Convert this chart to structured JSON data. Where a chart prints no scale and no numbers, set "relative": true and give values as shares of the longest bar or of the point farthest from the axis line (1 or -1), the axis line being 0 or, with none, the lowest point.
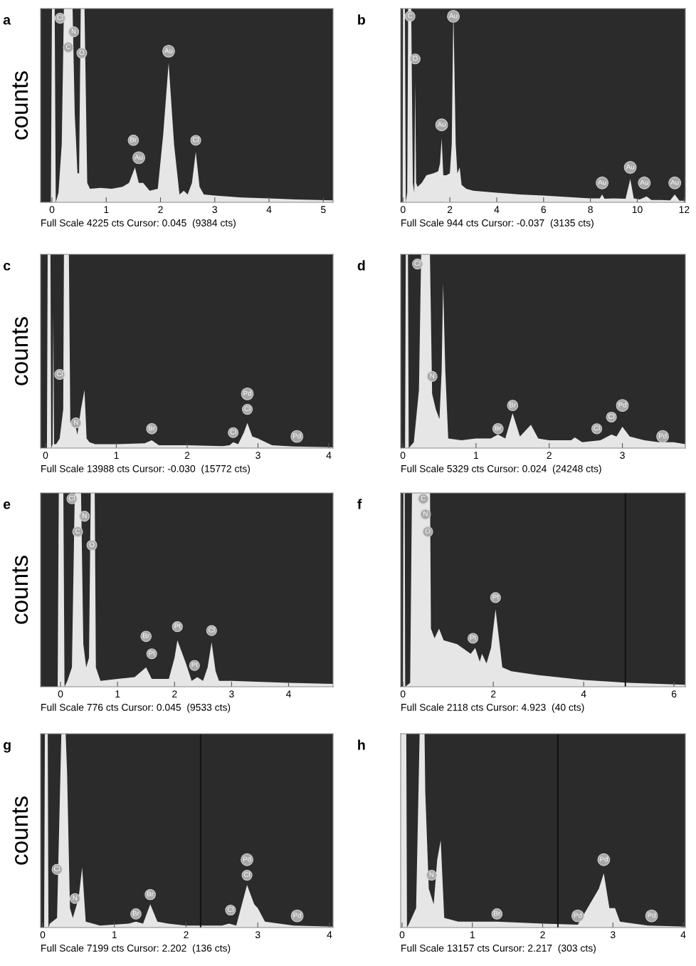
{
  "chart_data": [
    {
      "type": "area",
      "title": "a",
      "ylabel": "counts",
      "relative": true,
      "tick_labels": "x",
      "grid": false,
      "color": "#e6e6e6",
      "xlim": [
        -0.21,
        5.18
      ],
      "xticks": [
        0,
        1,
        2,
        3,
        4,
        5
      ],
      "x": [
        -0.21,
        -0.02,
        0,
        0.05,
        0.07,
        0.12,
        0.18,
        0.22,
        0.26,
        0.38,
        0.42,
        0.44,
        0.47,
        0.5,
        0.53,
        0.6,
        0.65,
        0.7,
        0.9,
        1.1,
        1.3,
        1.42,
        1.53,
        1.6,
        1.68,
        1.8,
        1.95,
        2.05,
        2.15,
        2.25,
        2.35,
        2.43,
        2.5,
        2.58,
        2.65,
        2.72,
        2.8,
        3.0,
        3.5,
        4.0,
        4.5,
        5.18
      ],
      "values": [
        0,
        0,
        1,
        1,
        0,
        0.05,
        0.3,
        1,
        1,
        1,
        0.45,
        0.34,
        0.15,
        0.15,
        1,
        1,
        0.1,
        0.07,
        0.074,
        0.07,
        0.08,
        0.1,
        0.18,
        0.1,
        0.1,
        0.06,
        0.07,
        0.35,
        0.72,
        0.3,
        0.04,
        0.06,
        0.04,
        0.1,
        0.26,
        0.08,
        0.04,
        0.035,
        0.025,
        0.02,
        0.015,
        0.01
      ],
      "annotations": [
        {
          "text": "Cl",
          "x": 0.15,
          "y": 0.95
        },
        {
          "text": "N",
          "x": 0.4,
          "y": 0.88
        },
        {
          "text": "C",
          "x": 0.3,
          "y": 0.8
        },
        {
          "text": "O",
          "x": 0.55,
          "y": 0.77
        },
        {
          "text": "Au",
          "x": 2.15,
          "y": 0.78
        },
        {
          "text": "Br",
          "x": 1.5,
          "y": 0.32
        },
        {
          "text": "Au",
          "x": 1.6,
          "y": 0.23
        },
        {
          "text": "Cl",
          "x": 2.65,
          "y": 0.32
        },
        "Full Scale 4225 cts Cursor: 0.045  (9384 cts)"
      ]
    },
    {
      "type": "area",
      "title": "b",
      "relative": true,
      "tick_labels": "x",
      "grid": false,
      "color": "#e6e6e6",
      "xlim": [
        -0.1,
        12.05
      ],
      "xticks": [
        0,
        2,
        4,
        6,
        8,
        10,
        12
      ],
      "x": [
        -0.1,
        -0.02,
        0,
        0.08,
        0.12,
        0.18,
        0.22,
        0.35,
        0.42,
        0.48,
        0.52,
        0.56,
        0.62,
        0.8,
        1.0,
        1.3,
        1.5,
        1.58,
        1.65,
        1.72,
        1.85,
        2.0,
        2.08,
        2.15,
        2.25,
        2.32,
        2.42,
        2.5,
        2.7,
        3.0,
        4.0,
        5.0,
        6.0,
        7.0,
        8.0,
        8.4,
        8.5,
        8.6,
        9.0,
        9.5,
        9.7,
        9.85,
        10.1,
        10.4,
        10.6,
        11.0,
        11.4,
        11.6,
        11.8,
        12.05
      ],
      "values": [
        0,
        0,
        1,
        1,
        0,
        0.05,
        1,
        1,
        0.1,
        0.05,
        0.62,
        0.1,
        0.08,
        0.1,
        0.14,
        0.15,
        0.16,
        0.2,
        0.33,
        0.14,
        0.14,
        0.15,
        0.3,
        1,
        0.3,
        0.15,
        0.18,
        0.09,
        0.07,
        0.06,
        0.05,
        0.04,
        0.035,
        0.028,
        0.02,
        0.02,
        0.04,
        0.018,
        0.02,
        0.018,
        0.12,
        0.02,
        0.015,
        0.03,
        0.012,
        0.012,
        0.01,
        0.04,
        0.008,
        0.008
      ],
      "annotations": [
        {
          "text": "C",
          "x": 0.3,
          "y": 0.96
        },
        {
          "text": "O",
          "x": 0.52,
          "y": 0.74
        },
        {
          "text": "Au",
          "x": 2.15,
          "y": 0.96
        },
        {
          "text": "Au",
          "x": 1.65,
          "y": 0.4
        },
        {
          "text": "Au",
          "x": 8.5,
          "y": 0.1
        },
        {
          "text": "Au",
          "x": 9.7,
          "y": 0.18
        },
        {
          "text": "Au",
          "x": 10.3,
          "y": 0.1
        },
        {
          "text": "Au",
          "x": 11.6,
          "y": 0.1
        },
        "Full Scale 944 cts Cursor: -0.037  (3135 cts)"
      ]
    },
    {
      "type": "area",
      "title": "c",
      "ylabel": "counts",
      "relative": true,
      "tick_labels": "x",
      "grid": false,
      "color": "#e6e6e6",
      "xlim": [
        -0.07,
        4.06
      ],
      "xticks": [
        0,
        1,
        2,
        3,
        4
      ],
      "x": [
        -0.07,
        0.02,
        0.03,
        0.07,
        0.08,
        0.1,
        0.11,
        0.12,
        0.15,
        0.2,
        0.25,
        0.26,
        0.33,
        0.35,
        0.4,
        0.45,
        0.5,
        0.55,
        0.58,
        0.62,
        0.7,
        1.0,
        1.4,
        1.5,
        1.6,
        2.0,
        2.5,
        2.6,
        2.65,
        2.72,
        2.8,
        2.85,
        2.92,
        3.0,
        3.05,
        3.2,
        3.5,
        4.06
      ],
      "values": [
        0,
        0,
        1,
        1,
        0,
        0.02,
        0.7,
        0.02,
        0.02,
        0.05,
        0.2,
        1,
        1,
        0.13,
        0.15,
        0.07,
        0.2,
        0.3,
        0.05,
        0.03,
        0.02,
        0.02,
        0.025,
        0.04,
        0.015,
        0.015,
        0.01,
        0.015,
        0.03,
        0.02,
        0.08,
        0.13,
        0.06,
        0.05,
        0.04,
        0.015,
        0.008,
        0.005
      ],
      "annotations": [
        {
          "text": "Cl",
          "x": 0.2,
          "y": 0.38
        },
        {
          "text": "N",
          "x": 0.43,
          "y": 0.13
        },
        {
          "text": "Br",
          "x": 1.5,
          "y": 0.1
        },
        {
          "text": "Cl",
          "x": 2.65,
          "y": 0.08
        },
        {
          "text": "Cl",
          "x": 2.85,
          "y": 0.2
        },
        {
          "text": "Pd",
          "x": 2.85,
          "y": 0.28
        },
        {
          "text": "Pd",
          "x": 3.55,
          "y": 0.06
        },
        "Full Scale 13988 cts Cursor: -0.030  (15772 cts)"
      ]
    },
    {
      "type": "area",
      "title": "d",
      "relative": true,
      "tick_labels": "x",
      "grid": false,
      "color": "#e6e6e6",
      "xlim": [
        -0.03,
        3.86
      ],
      "xticks": [
        0,
        1,
        2,
        3
      ],
      "x": [
        -0.03,
        0.03,
        0.04,
        0.07,
        0.08,
        0.15,
        0.22,
        0.25,
        0.37,
        0.4,
        0.45,
        0.5,
        0.53,
        0.55,
        0.58,
        0.62,
        0.8,
        1.0,
        1.2,
        1.3,
        1.4,
        1.5,
        1.6,
        1.75,
        1.85,
        2.0,
        2.3,
        2.35,
        2.45,
        2.7,
        2.85,
        2.92,
        3.0,
        3.1,
        3.3,
        3.5,
        3.7,
        3.86
      ],
      "values": [
        0,
        0,
        1,
        1,
        0,
        0.03,
        0.3,
        1,
        1,
        0.28,
        0.2,
        0.15,
        0.4,
        0.85,
        0.4,
        0.05,
        0.04,
        0.05,
        0.05,
        0.07,
        0.05,
        0.18,
        0.06,
        0.12,
        0.05,
        0.04,
        0.04,
        0.055,
        0.03,
        0.04,
        0.07,
        0.06,
        0.11,
        0.06,
        0.04,
        0.03,
        0.03,
        0.02
      ],
      "annotations": [
        {
          "text": "Cl",
          "x": 0.2,
          "y": 0.95
        },
        {
          "text": "N",
          "x": 0.4,
          "y": 0.37
        },
        {
          "text": "Br",
          "x": 1.3,
          "y": 0.1
        },
        {
          "text": "Br",
          "x": 1.5,
          "y": 0.22
        },
        {
          "text": "Cl",
          "x": 2.65,
          "y": 0.1
        },
        {
          "text": "Cl",
          "x": 2.85,
          "y": 0.16
        },
        {
          "text": "Pd",
          "x": 3.0,
          "y": 0.22
        },
        {
          "text": "Pd",
          "x": 3.55,
          "y": 0.06
        },
        "Full Scale 5329 cts Cursor: 0.024  (24248 cts)"
      ]
    },
    {
      "type": "area",
      "title": "e",
      "ylabel": "counts",
      "relative": true,
      "tick_labels": "x",
      "grid": false,
      "color": "#e6e6e6",
      "xlim": [
        -0.35,
        4.78
      ],
      "xticks": [
        0,
        1,
        2,
        3,
        4
      ],
      "x": [
        -0.35,
        -0.05,
        -0.03,
        0.05,
        0.07,
        0.12,
        0.2,
        0.25,
        0.36,
        0.4,
        0.45,
        0.5,
        0.53,
        0.6,
        0.62,
        0.7,
        1.0,
        1.3,
        1.5,
        1.6,
        1.9,
        2.0,
        2.05,
        2.2,
        2.3,
        2.4,
        2.5,
        2.58,
        2.65,
        2.72,
        2.78,
        3.0,
        4.0,
        4.78
      ],
      "values": [
        0,
        0,
        1,
        1,
        0,
        0.03,
        0.1,
        1,
        1,
        0.22,
        0.1,
        0.15,
        1,
        1,
        0.1,
        0.03,
        0.04,
        0.05,
        0.1,
        0.04,
        0.04,
        0.15,
        0.24,
        0.12,
        0.03,
        0.05,
        0.03,
        0.1,
        0.23,
        0.08,
        0.03,
        0.03,
        0.02,
        0.015
      ],
      "annotations": [
        {
          "text": "Cl",
          "x": 0.2,
          "y": 0.97
        },
        {
          "text": "N",
          "x": 0.42,
          "y": 0.88
        },
        {
          "text": "C",
          "x": 0.3,
          "y": 0.8
        },
        {
          "text": "O",
          "x": 0.55,
          "y": 0.73
        },
        {
          "text": "Br",
          "x": 1.5,
          "y": 0.26
        },
        {
          "text": "Pt",
          "x": 1.6,
          "y": 0.17
        },
        {
          "text": "Pt",
          "x": 2.05,
          "y": 0.31
        },
        {
          "text": "Pt",
          "x": 2.35,
          "y": 0.11
        },
        {
          "text": "Cl",
          "x": 2.65,
          "y": 0.29
        },
        "Full Scale 776 cts Cursor: 0.045  (9533 cts)"
      ]
    },
    {
      "type": "area",
      "title": "f",
      "relative": true,
      "tick_labels": "x",
      "grid": false,
      "color": "#e6e6e6",
      "xlim": [
        -0.05,
        6.25
      ],
      "xticks": [
        0,
        2,
        4,
        6
      ],
      "x": [
        -0.05,
        0,
        0.01,
        0.04,
        0.05,
        0.16,
        0.2,
        0.6,
        0.62,
        0.7,
        0.8,
        0.9,
        1.2,
        1.5,
        1.6,
        1.7,
        1.75,
        1.85,
        1.95,
        2.05,
        2.15,
        2.2,
        2.4,
        3.0,
        4.0,
        5.0,
        6.25
      ],
      "values": [
        0,
        0,
        1,
        1,
        0,
        0.02,
        1,
        1,
        0.3,
        0.25,
        0.3,
        0.24,
        0.22,
        0.17,
        0.2,
        0.13,
        0.17,
        0.12,
        0.2,
        0.4,
        0.2,
        0.1,
        0.08,
        0.06,
        0.035,
        0.02,
        0.01
      ],
      "ref_lines": [
        {
          "axis": "x",
          "value": 4.923,
          "color": "#111111"
        }
      ],
      "annotations": [
        {
          "text": "C",
          "x": 0.45,
          "y": 0.97
        },
        {
          "text": "N",
          "x": 0.5,
          "y": 0.89
        },
        {
          "text": "O",
          "x": 0.55,
          "y": 0.8
        },
        {
          "text": "Pt",
          "x": 2.05,
          "y": 0.46
        },
        {
          "text": "Pt",
          "x": 1.55,
          "y": 0.25
        },
        "Full Scale 2118 cts Cursor: 4.923  (40 cts)"
      ]
    },
    {
      "type": "area",
      "title": "g",
      "ylabel": "counts",
      "relative": true,
      "tick_labels": "x",
      "grid": false,
      "color": "#e6e6e6",
      "xlim": [
        -0.03,
        4.05
      ],
      "xticks": [
        0,
        1,
        2,
        3,
        4
      ],
      "x": [
        -0.03,
        0.02,
        0.03,
        0.07,
        0.08,
        0.1,
        0.2,
        0.26,
        0.32,
        0.34,
        0.38,
        0.42,
        0.5,
        0.55,
        0.6,
        0.8,
        1.2,
        1.3,
        1.4,
        1.5,
        1.6,
        1.75,
        2.0,
        2.5,
        2.6,
        2.7,
        2.85,
        2.95,
        3.0,
        3.1,
        3.5,
        4.05
      ],
      "values": [
        0,
        0,
        1,
        1,
        0,
        0.02,
        0.05,
        1,
        1,
        0.8,
        0.1,
        0.05,
        0.15,
        0.31,
        0.03,
        0.01,
        0.02,
        0.03,
        0.02,
        0.12,
        0.03,
        0.02,
        0.01,
        0.01,
        0.02,
        0.01,
        0.22,
        0.12,
        0.1,
        0.03,
        0.01,
        0.005
      ],
      "ref_lines": [
        {
          "axis": "x",
          "value": 2.202,
          "color": "#111111"
        }
      ],
      "annotations": [
        {
          "text": "Cl",
          "x": 0.2,
          "y": 0.3
        },
        {
          "text": "N",
          "x": 0.45,
          "y": 0.15
        },
        {
          "text": "Br",
          "x": 1.3,
          "y": 0.07
        },
        {
          "text": "Br",
          "x": 1.5,
          "y": 0.17
        },
        {
          "text": "Cl",
          "x": 2.62,
          "y": 0.09
        },
        {
          "text": "Cl",
          "x": 2.85,
          "y": 0.27
        },
        {
          "text": "Pd",
          "x": 2.85,
          "y": 0.35
        },
        {
          "text": "Pd",
          "x": 3.55,
          "y": 0.06
        },
        "Full Scale 7199 cts Cursor: 2.202  (136 cts)"
      ]
    },
    {
      "type": "area",
      "title": "h",
      "relative": true,
      "tick_labels": "x",
      "grid": false,
      "color": "#e6e6e6",
      "xlim": [
        -0.02,
        4.03
      ],
      "xticks": [
        0,
        1,
        2,
        3,
        4
      ],
      "x": [
        -0.02,
        0,
        0.06,
        0.07,
        0.1,
        0.2,
        0.25,
        0.32,
        0.33,
        0.38,
        0.45,
        0.5,
        0.55,
        0.6,
        0.8,
        1.35,
        2.0,
        2.5,
        2.8,
        2.87,
        2.95,
        3.03,
        3.1,
        3.5,
        4.03
      ],
      "values": [
        1,
        1,
        1,
        0,
        0.02,
        0.1,
        1,
        1,
        0.7,
        0.2,
        0.12,
        0.35,
        0.45,
        0.05,
        0.03,
        0.03,
        0.02,
        0.015,
        0.2,
        0.28,
        0.1,
        0.1,
        0.03,
        0.01,
        0.005
      ],
      "ref_lines": [
        {
          "axis": "x",
          "value": 2.217,
          "color": "#111111"
        }
      ],
      "annotations": [
        {
          "text": "N",
          "x": 0.42,
          "y": 0.27
        },
        {
          "text": "Br",
          "x": 1.35,
          "y": 0.07
        },
        {
          "text": "Pd",
          "x": 2.5,
          "y": 0.06
        },
        {
          "text": "Pd",
          "x": 2.87,
          "y": 0.35
        },
        {
          "text": "Pd",
          "x": 3.55,
          "y": 0.06
        },
        "Full Scale 13157 cts Cursor: 2.217  (303 cts)"
      ]
    }
  ]
}
